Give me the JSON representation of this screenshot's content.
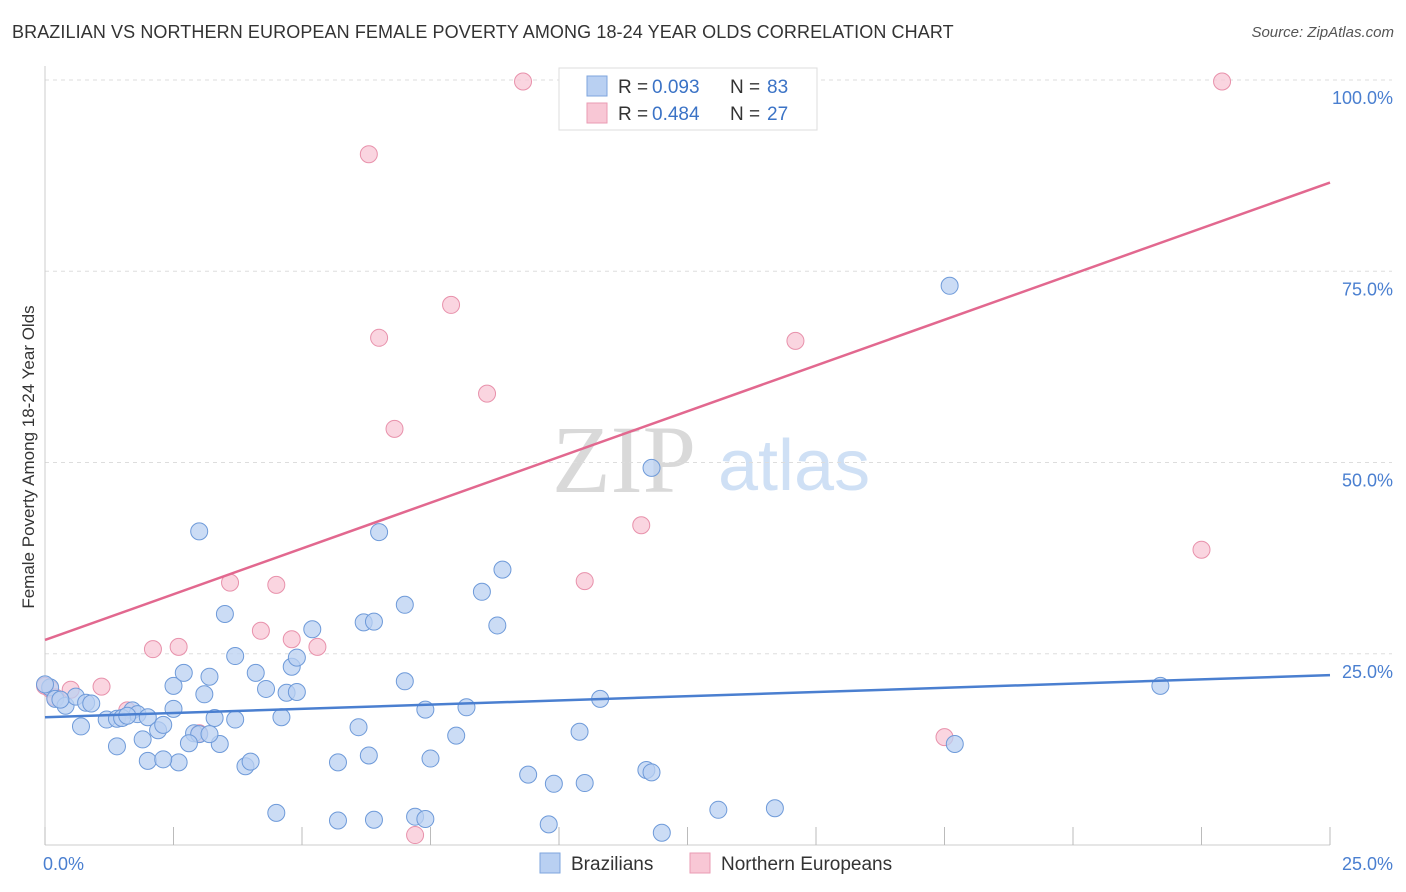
{
  "header": {
    "title": "BRAZILIAN VS NORTHERN EUROPEAN FEMALE POVERTY AMONG 18-24 YEAR OLDS CORRELATION CHART",
    "source": "Source: ZipAtlas.com"
  },
  "watermark": {
    "zip": "ZIP",
    "atlas": "atlas"
  },
  "legend": {
    "r_label": "R =",
    "n_label": "N =",
    "rows": [
      {
        "r": "0.093",
        "n": "83"
      },
      {
        "r": "0.484",
        "n": "27"
      }
    ]
  },
  "chart_data": {
    "type": "scatter",
    "title": "BRAZILIAN VS NORTHERN EUROPEAN FEMALE POVERTY AMONG 18-24 YEAR OLDS CORRELATION CHART",
    "xlabel": "",
    "ylabel": "Female Poverty Among 18-24 Year Olds",
    "xlim": [
      0,
      25
    ],
    "ylim": [
      0,
      100
    ],
    "x_tick_labels": [
      "0.0%",
      "25.0%"
    ],
    "y_tick_labels": [
      "25.0%",
      "50.0%",
      "75.0%",
      "100.0%"
    ],
    "y_ticks": [
      25,
      50,
      75,
      100
    ],
    "grid": true,
    "colors": {
      "brazilians": "#4a7fd0",
      "northern_europeans": "#e2688f",
      "brazilians_fill": "#b9d0f2",
      "northern_europeans_fill": "#f8c7d5"
    },
    "series": [
      {
        "name": "Brazilians",
        "r": 0.093,
        "n": 83,
        "trend": {
          "x": [
            0,
            25
          ],
          "y": [
            16.7,
            22.2
          ]
        },
        "points": [
          [
            0.1,
            20.6
          ],
          [
            0.2,
            19.1
          ],
          [
            0.4,
            18.2
          ],
          [
            0.6,
            19.4
          ],
          [
            0.8,
            18.6
          ],
          [
            0.9,
            18.5
          ],
          [
            0.7,
            15.5
          ],
          [
            1.2,
            16.4
          ],
          [
            1.4,
            16.5
          ],
          [
            1.7,
            17.6
          ],
          [
            1.8,
            17.1
          ],
          [
            2.0,
            16.7
          ],
          [
            1.4,
            12.9
          ],
          [
            1.9,
            13.8
          ],
          [
            2.2,
            15.0
          ],
          [
            2.3,
            15.7
          ],
          [
            2.5,
            17.8
          ],
          [
            2.5,
            20.8
          ],
          [
            2.7,
            22.5
          ],
          [
            3.2,
            22.0
          ],
          [
            3.1,
            19.7
          ],
          [
            3.7,
            24.7
          ],
          [
            4.1,
            22.5
          ],
          [
            4.3,
            20.4
          ],
          [
            4.7,
            19.9
          ],
          [
            4.6,
            16.7
          ],
          [
            4.8,
            23.3
          ],
          [
            4.9,
            24.5
          ],
          [
            3.7,
            16.4
          ],
          [
            3.3,
            16.6
          ],
          [
            2.9,
            14.6
          ],
          [
            3.0,
            14.5
          ],
          [
            3.4,
            13.2
          ],
          [
            2.8,
            13.3
          ],
          [
            2.0,
            11.0
          ],
          [
            2.6,
            10.8
          ],
          [
            2.3,
            11.2
          ],
          [
            3.9,
            10.3
          ],
          [
            4.0,
            10.9
          ],
          [
            3.0,
            41.0
          ],
          [
            3.5,
            30.2
          ],
          [
            5.2,
            28.2
          ],
          [
            6.2,
            29.1
          ],
          [
            6.4,
            29.2
          ],
          [
            6.5,
            40.9
          ],
          [
            7.0,
            31.4
          ],
          [
            8.5,
            33.1
          ],
          [
            8.9,
            36.0
          ],
          [
            8.8,
            28.7
          ],
          [
            6.1,
            15.4
          ],
          [
            6.3,
            11.7
          ],
          [
            5.7,
            10.8
          ],
          [
            7.0,
            21.4
          ],
          [
            7.4,
            17.7
          ],
          [
            7.5,
            11.3
          ],
          [
            8.0,
            14.3
          ],
          [
            9.4,
            9.2
          ],
          [
            9.9,
            8.0
          ],
          [
            10.5,
            8.1
          ],
          [
            10.4,
            14.8
          ],
          [
            10.8,
            19.1
          ],
          [
            11.7,
            9.8
          ],
          [
            11.8,
            9.5
          ],
          [
            11.8,
            49.3
          ],
          [
            12.0,
            1.6
          ],
          [
            13.1,
            4.6
          ],
          [
            14.2,
            4.8
          ],
          [
            17.6,
            73.1
          ],
          [
            17.7,
            13.2
          ],
          [
            21.7,
            20.8
          ],
          [
            4.5,
            4.2
          ],
          [
            5.7,
            3.2
          ],
          [
            6.4,
            3.3
          ],
          [
            7.2,
            3.7
          ],
          [
            7.4,
            3.4
          ],
          [
            9.8,
            2.7
          ],
          [
            0.0,
            21.0
          ],
          [
            0.3,
            19.0
          ],
          [
            1.5,
            16.6
          ],
          [
            1.6,
            16.9
          ],
          [
            3.2,
            14.5
          ],
          [
            4.9,
            20.0
          ],
          [
            8.2,
            18.0
          ]
        ]
      },
      {
        "name": "Northern Europeans",
        "r": 0.484,
        "n": 27,
        "trend": {
          "x": [
            0,
            25
          ],
          "y": [
            26.8,
            86.6
          ]
        },
        "points": [
          [
            0.1,
            20.4
          ],
          [
            0.5,
            20.3
          ],
          [
            1.1,
            20.7
          ],
          [
            1.6,
            17.6
          ],
          [
            2.1,
            25.6
          ],
          [
            2.6,
            25.9
          ],
          [
            3.0,
            14.6
          ],
          [
            3.6,
            34.3
          ],
          [
            4.2,
            28.0
          ],
          [
            4.5,
            34.0
          ],
          [
            4.8,
            26.9
          ],
          [
            5.3,
            25.9
          ],
          [
            6.3,
            90.3
          ],
          [
            6.5,
            66.3
          ],
          [
            6.8,
            54.4
          ],
          [
            7.2,
            1.3
          ],
          [
            7.9,
            70.6
          ],
          [
            8.6,
            59.0
          ],
          [
            9.3,
            99.8
          ],
          [
            10.5,
            34.5
          ],
          [
            11.6,
            41.8
          ],
          [
            14.6,
            65.9
          ],
          [
            17.5,
            14.1
          ],
          [
            22.5,
            38.6
          ],
          [
            22.9,
            99.8
          ],
          [
            0.0,
            20.8
          ],
          [
            0.2,
            19.3
          ]
        ]
      }
    ]
  },
  "bottom_legend": {
    "items": [
      "Brazilians",
      "Northern Europeans"
    ]
  }
}
